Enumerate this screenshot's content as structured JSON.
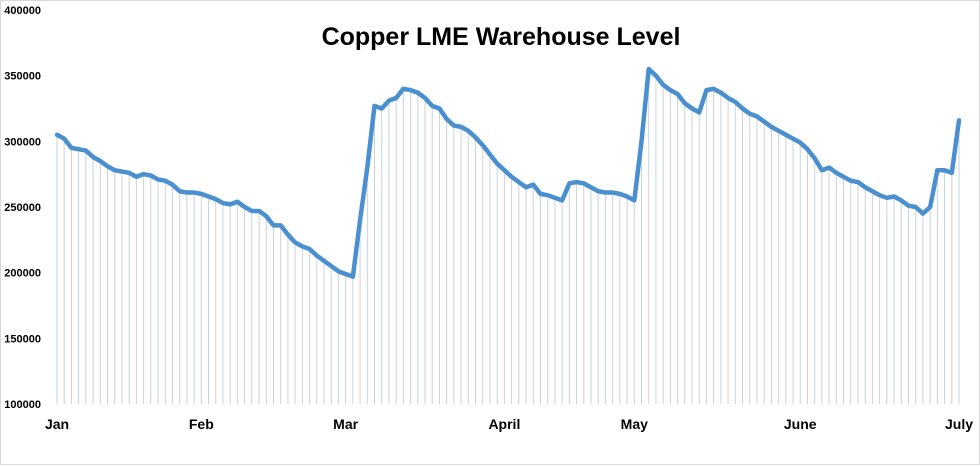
{
  "chart_data": {
    "type": "area",
    "title": "Copper LME Warehouse Level",
    "xlabel": "",
    "ylabel": "",
    "ylim": [
      100000,
      400000
    ],
    "yticks": [
      "100000",
      "150000",
      "200000",
      "250000",
      "300000",
      "350000",
      "400000"
    ],
    "xticks": [
      {
        "label": "Jan",
        "index": 0
      },
      {
        "label": "Feb",
        "index": 20
      },
      {
        "label": "Mar",
        "index": 40
      },
      {
        "label": "April",
        "index": 62
      },
      {
        "label": "May",
        "index": 80
      },
      {
        "label": "June",
        "index": 103
      },
      {
        "label": "July",
        "index": 125
      }
    ],
    "grid": false,
    "legend": "none",
    "line_color": "#4a8fd0",
    "fill_line_color": "#c8d3e0",
    "values": [
      305000,
      302000,
      295000,
      294000,
      293000,
      288000,
      285000,
      281000,
      278000,
      277000,
      276000,
      273000,
      275000,
      274000,
      271000,
      270000,
      267000,
      262000,
      261000,
      261000,
      260000,
      258000,
      256000,
      253000,
      252000,
      254000,
      250000,
      247000,
      247000,
      243000,
      236000,
      236000,
      229000,
      223000,
      220000,
      218000,
      213000,
      209000,
      205000,
      201000,
      199000,
      197000,
      240000,
      280000,
      327000,
      325000,
      331000,
      333000,
      340000,
      339000,
      337000,
      333000,
      327000,
      325000,
      317000,
      312000,
      311000,
      308000,
      303000,
      297000,
      290000,
      283000,
      278000,
      273000,
      269000,
      265000,
      267000,
      260000,
      259000,
      257000,
      255000,
      268000,
      269000,
      268000,
      265000,
      262000,
      261000,
      261000,
      260000,
      258000,
      255000,
      300000,
      355000,
      350000,
      343000,
      339000,
      336000,
      329000,
      325000,
      322000,
      339000,
      340000,
      337000,
      333000,
      330000,
      325000,
      321000,
      319000,
      315000,
      311000,
      308000,
      305000,
      302000,
      299000,
      294000,
      287000,
      278000,
      280000,
      276000,
      273000,
      270000,
      269000,
      265000,
      262000,
      259000,
      257000,
      258000,
      255000,
      251000,
      250000,
      245000,
      250000,
      278000,
      278000,
      276000,
      316000
    ]
  }
}
